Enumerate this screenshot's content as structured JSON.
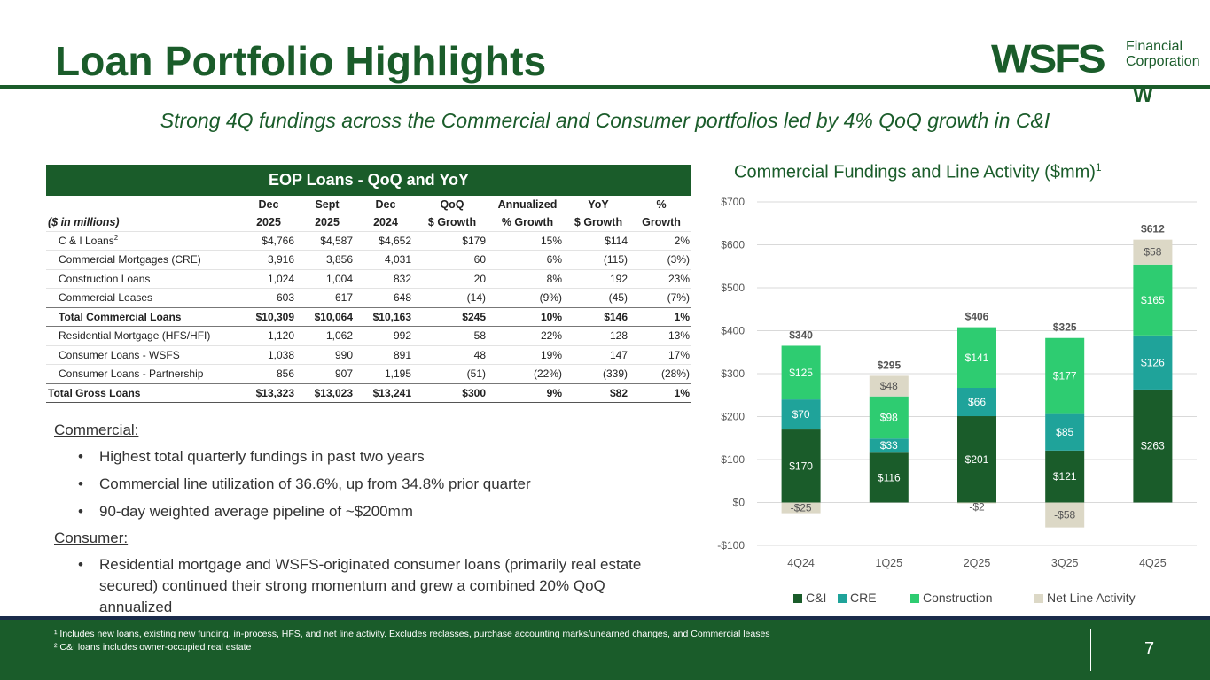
{
  "header": {
    "title": "Loan Portfolio Highlights",
    "subtitle": "Strong 4Q fundings across the Commercial and Consumer portfolios led by 4% QoQ growth in C&I"
  },
  "logo": {
    "main": "WSFS",
    "sub_line1": "Financial",
    "sub_line2": "Corporation",
    "mark": "W"
  },
  "table": {
    "title": "EOP Loans - QoQ and YoY",
    "unit_note": "($ in millions)",
    "col_top": [
      "Dec",
      "Sept",
      "Dec",
      "QoQ",
      "Annualized",
      "YoY",
      "%"
    ],
    "col_bottom": [
      "2025",
      "2025",
      "2024",
      "$ Growth",
      "% Growth",
      "$ Growth",
      "Growth"
    ],
    "rows": [
      {
        "label": "C & I Loans",
        "sup": "2",
        "v": [
          "$4,766",
          "$4,587",
          "$4,652",
          "$179",
          "15%",
          "$114",
          "2%"
        ]
      },
      {
        "label": "Commercial Mortgages (CRE)",
        "v": [
          "3,916",
          "3,856",
          "4,031",
          "60",
          "6%",
          "(115)",
          "(3%)"
        ]
      },
      {
        "label": "Construction Loans",
        "v": [
          "1,024",
          "1,004",
          "832",
          "20",
          "8%",
          "192",
          "23%"
        ]
      },
      {
        "label": "Commercial Leases",
        "v": [
          "603",
          "617",
          "648",
          "(14)",
          "(9%)",
          "(45)",
          "(7%)"
        ]
      },
      {
        "label": "Total Commercial Loans",
        "v": [
          "$10,309",
          "$10,064",
          "$10,163",
          "$245",
          "10%",
          "$146",
          "1%"
        ]
      },
      {
        "label": "Residential Mortgage (HFS/HFI)",
        "v": [
          "1,120",
          "1,062",
          "992",
          "58",
          "22%",
          "128",
          "13%"
        ]
      },
      {
        "label": "Consumer Loans - WSFS",
        "v": [
          "1,038",
          "990",
          "891",
          "48",
          "19%",
          "147",
          "17%"
        ]
      },
      {
        "label": "Consumer Loans - Partnership",
        "v": [
          "856",
          "907",
          "1,195",
          "(51)",
          "(22%)",
          "(339)",
          "(28%)"
        ]
      },
      {
        "label": "Total Gross Loans",
        "v": [
          "$13,323",
          "$13,023",
          "$13,241",
          "$300",
          "9%",
          "$82",
          "1%"
        ]
      }
    ]
  },
  "notes": {
    "commercial_head": "Commercial:",
    "commercial": [
      "Highest total quarterly fundings in past two years",
      "Commercial line utilization of 36.6%, up from 34.8% prior quarter",
      "90-day weighted average pipeline of ~$200mm"
    ],
    "consumer_head": "Consumer:",
    "consumer": [
      "Residential mortgage and WSFS-originated consumer loans (primarily real estate secured) continued their strong momentum and grew a combined 20% QoQ annualized"
    ]
  },
  "chart_data": {
    "type": "bar",
    "stacked": true,
    "title": "Commercial Fundings and Line Activity ($mm)",
    "title_sup": "1",
    "categories": [
      "4Q24",
      "1Q25",
      "2Q25",
      "3Q25",
      "4Q25"
    ],
    "series": [
      {
        "name": "C&I",
        "color": "#1a5c2a",
        "values": [
          170,
          116,
          201,
          121,
          263
        ],
        "labels": [
          "$170",
          "$116",
          "$201",
          "$121",
          "$263"
        ]
      },
      {
        "name": "CRE",
        "color": "#1fa39a",
        "values": [
          70,
          33,
          66,
          85,
          126
        ],
        "labels": [
          "$70",
          "$33",
          "$66",
          "$85",
          "$126"
        ]
      },
      {
        "name": "Construction",
        "color": "#2ecc71",
        "values": [
          125,
          98,
          141,
          177,
          165
        ],
        "labels": [
          "$125",
          "$98",
          "$141",
          "$177",
          "$165"
        ]
      },
      {
        "name": "Net Line Activity",
        "color": "#dcd8c6",
        "values": [
          -25,
          48,
          -2,
          -58,
          58
        ],
        "labels": [
          "-$25",
          "$48",
          "-$2",
          "-$58",
          "$58"
        ]
      }
    ],
    "totals": [
      "$340",
      "$295",
      "$406",
      "$325",
      "$612"
    ],
    "ylim": [
      -100,
      700
    ],
    "yticks": [
      -100,
      0,
      100,
      200,
      300,
      400,
      500,
      600,
      700
    ],
    "ytick_labels": [
      "-$100",
      "$0",
      "$100",
      "$200",
      "$300",
      "$400",
      "$500",
      "$600",
      "$700"
    ],
    "legend_position": "bottom"
  },
  "footer": {
    "note1": "¹ Includes new loans, existing new funding, in-process, HFS, and net line activity. Excludes reclasses, purchase accounting marks/unearned changes, and Commercial leases",
    "note2": "² C&I loans includes owner-occupied real estate",
    "page": "7"
  }
}
